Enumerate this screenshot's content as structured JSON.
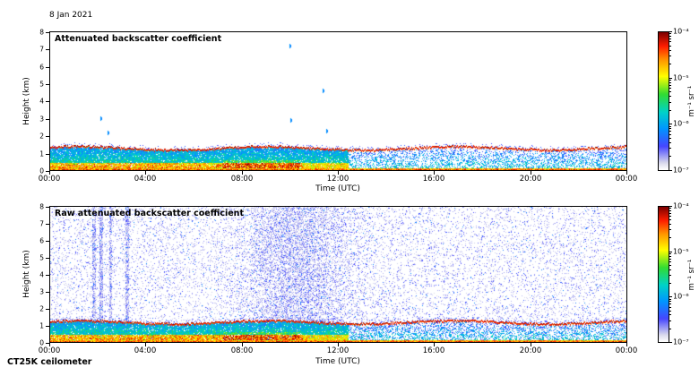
{
  "page": {
    "date_label": "8 Jan 2021",
    "instrument_label": "CT25K ceilometer"
  },
  "chart_data": [
    {
      "type": "heatmap",
      "title": "Attenuated backscatter coefficient",
      "xlabel": "Time (UTC)",
      "ylabel": "Height (km)",
      "x_ticks": [
        "00:00",
        "04:00",
        "08:00",
        "12:00",
        "16:00",
        "20:00",
        "00:00"
      ],
      "x_range_hours": [
        0,
        24
      ],
      "y_ticks": [
        0,
        1,
        2,
        3,
        4,
        5,
        6,
        7,
        8
      ],
      "ylim": [
        0,
        8
      ],
      "colorbar_ticks": [
        "10⁻⁴",
        "10⁻⁵",
        "10⁻⁶",
        "10⁻⁷"
      ],
      "colorbar_unit": "m⁻¹ sr⁻¹",
      "value_range_m1sr1": [
        1e-07,
        0.0001
      ],
      "colormap": "jet with white at low end",
      "grid": false,
      "content": {
        "aerosol_layer_top_km": 1.3,
        "dense_layer_until_hour": 12.4,
        "noise": false,
        "notes": "Strong boundary-layer backscatter below ~1.3 km topped by a thin dark-red gradient line; strongest orange/red returns below 0.5 km from 00:00 to ~10:30; layer sparser and bluer after ~12:30; a few isolated echoes aloft.",
        "sparse_echoes": [
          {
            "hour": 2.1,
            "km": 3.0
          },
          {
            "hour": 2.4,
            "km": 2.2
          },
          {
            "hour": 9.95,
            "km": 7.2
          },
          {
            "hour": 10.0,
            "km": 2.9
          },
          {
            "hour": 11.35,
            "km": 4.6
          },
          {
            "hour": 11.5,
            "km": 2.3
          }
        ]
      }
    },
    {
      "type": "heatmap",
      "title": "Raw attenuated backscatter coefficient",
      "xlabel": "Time (UTC)",
      "ylabel": "Height (km)",
      "x_ticks": [
        "00:00",
        "04:00",
        "08:00",
        "12:00",
        "16:00",
        "20:00",
        "00:00"
      ],
      "x_range_hours": [
        0,
        24
      ],
      "y_ticks": [
        0,
        1,
        2,
        3,
        4,
        5,
        6,
        7,
        8
      ],
      "ylim": [
        0,
        8
      ],
      "colorbar_ticks": [
        "10⁻⁴",
        "10⁻⁵",
        "10⁻⁶",
        "10⁻⁷"
      ],
      "colorbar_unit": "m⁻¹ sr⁻¹",
      "value_range_m1sr1": [
        1e-07,
        0.0001
      ],
      "colormap": "jet with white at low end",
      "grid": false,
      "content": {
        "aerosol_layer_top_km": 1.2,
        "dense_layer_until_hour": 12.4,
        "noise": true,
        "dense_noise_center_hour": 10.2,
        "dense_noise_hours": [
          7.5,
          12.8
        ],
        "noise_streak_hours": [
          1.8,
          2.1,
          2.5,
          3.2
        ],
        "notes": "Same boundary layer as above plus uncorrected instrument noise: sparse light-blue speckle over the whole height range, dense blue noise between ~08:00 and ~12:30, and narrow vertical noise streaks near 02:00-03:15."
      }
    }
  ]
}
